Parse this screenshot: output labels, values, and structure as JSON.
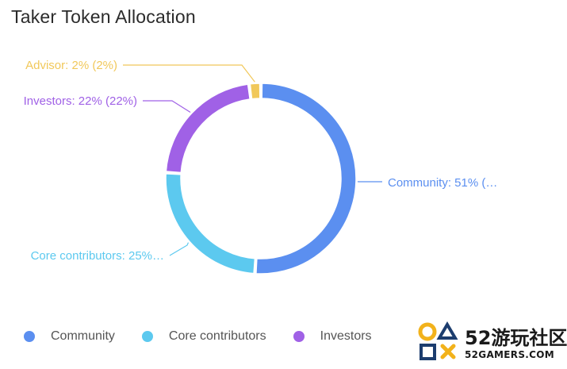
{
  "title": "Taker Token Allocation",
  "chart_data": {
    "type": "pie",
    "style": "donut",
    "title": "Taker Token Allocation",
    "slices": [
      {
        "name": "Community",
        "value": 51,
        "label": "Community: 51% (…",
        "color": "#5b8ff0"
      },
      {
        "name": "Core contributors",
        "value": 25,
        "label": "Core contributors: 25%…",
        "color": "#5cc9ef"
      },
      {
        "name": "Investors",
        "value": 22,
        "label": "Investors: 22% (22%)",
        "color": "#a061e6"
      },
      {
        "name": "Advisor",
        "value": 2,
        "label": "Advisor: 2% (2%)",
        "color": "#f1c85a"
      }
    ],
    "legend": [
      "Community",
      "Core contributors",
      "Investors"
    ],
    "legend_position": "bottom-left"
  },
  "watermark": {
    "top": "52游玩社区",
    "bottom": "52GAMERS.COM"
  }
}
